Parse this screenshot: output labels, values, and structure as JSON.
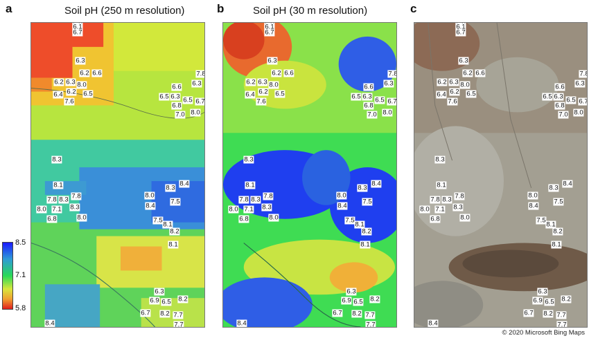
{
  "panels": [
    {
      "letter": "a",
      "title": "Soil pH (250 m resolution)"
    },
    {
      "letter": "b",
      "title": "Soil pH (30 m resolution)"
    },
    {
      "letter": "c",
      "title": ""
    }
  ],
  "legend": {
    "max": "8.5",
    "mid": "7.1",
    "min": "5.8"
  },
  "copyright": "© 2020 Microsoft Bing Maps",
  "colors": {
    "high_ph": "#1a1aff",
    "mid_ph": "#28d957",
    "low_ph": "#e01e1e",
    "imagery": "#9c9a8e"
  },
  "samples": [
    "5.9",
    "6.1",
    "6.7",
    "6.3",
    "6.2",
    "6.6",
    "6.2",
    "6.3",
    "8.0",
    "6.4",
    "6.2",
    "6.5",
    "7.6",
    "7.8",
    "6.3",
    "6.6",
    "6.5",
    "6.3",
    "6.5",
    "6.7",
    "6.8",
    "7.0",
    "8.0",
    "8.3",
    "8.1",
    "8.3",
    "8.4",
    "8.0",
    "7.5",
    "7.8",
    "8.3",
    "7.8",
    "8.0",
    "7.1",
    "8.3",
    "6.8",
    "8.0",
    "7.5",
    "8.4",
    "8.1",
    "8.2",
    "8.1",
    "6.3",
    "6.9",
    "6.5",
    "8.2",
    "6.7",
    "8.2",
    "7.7",
    "7.7",
    "8.4"
  ]
}
